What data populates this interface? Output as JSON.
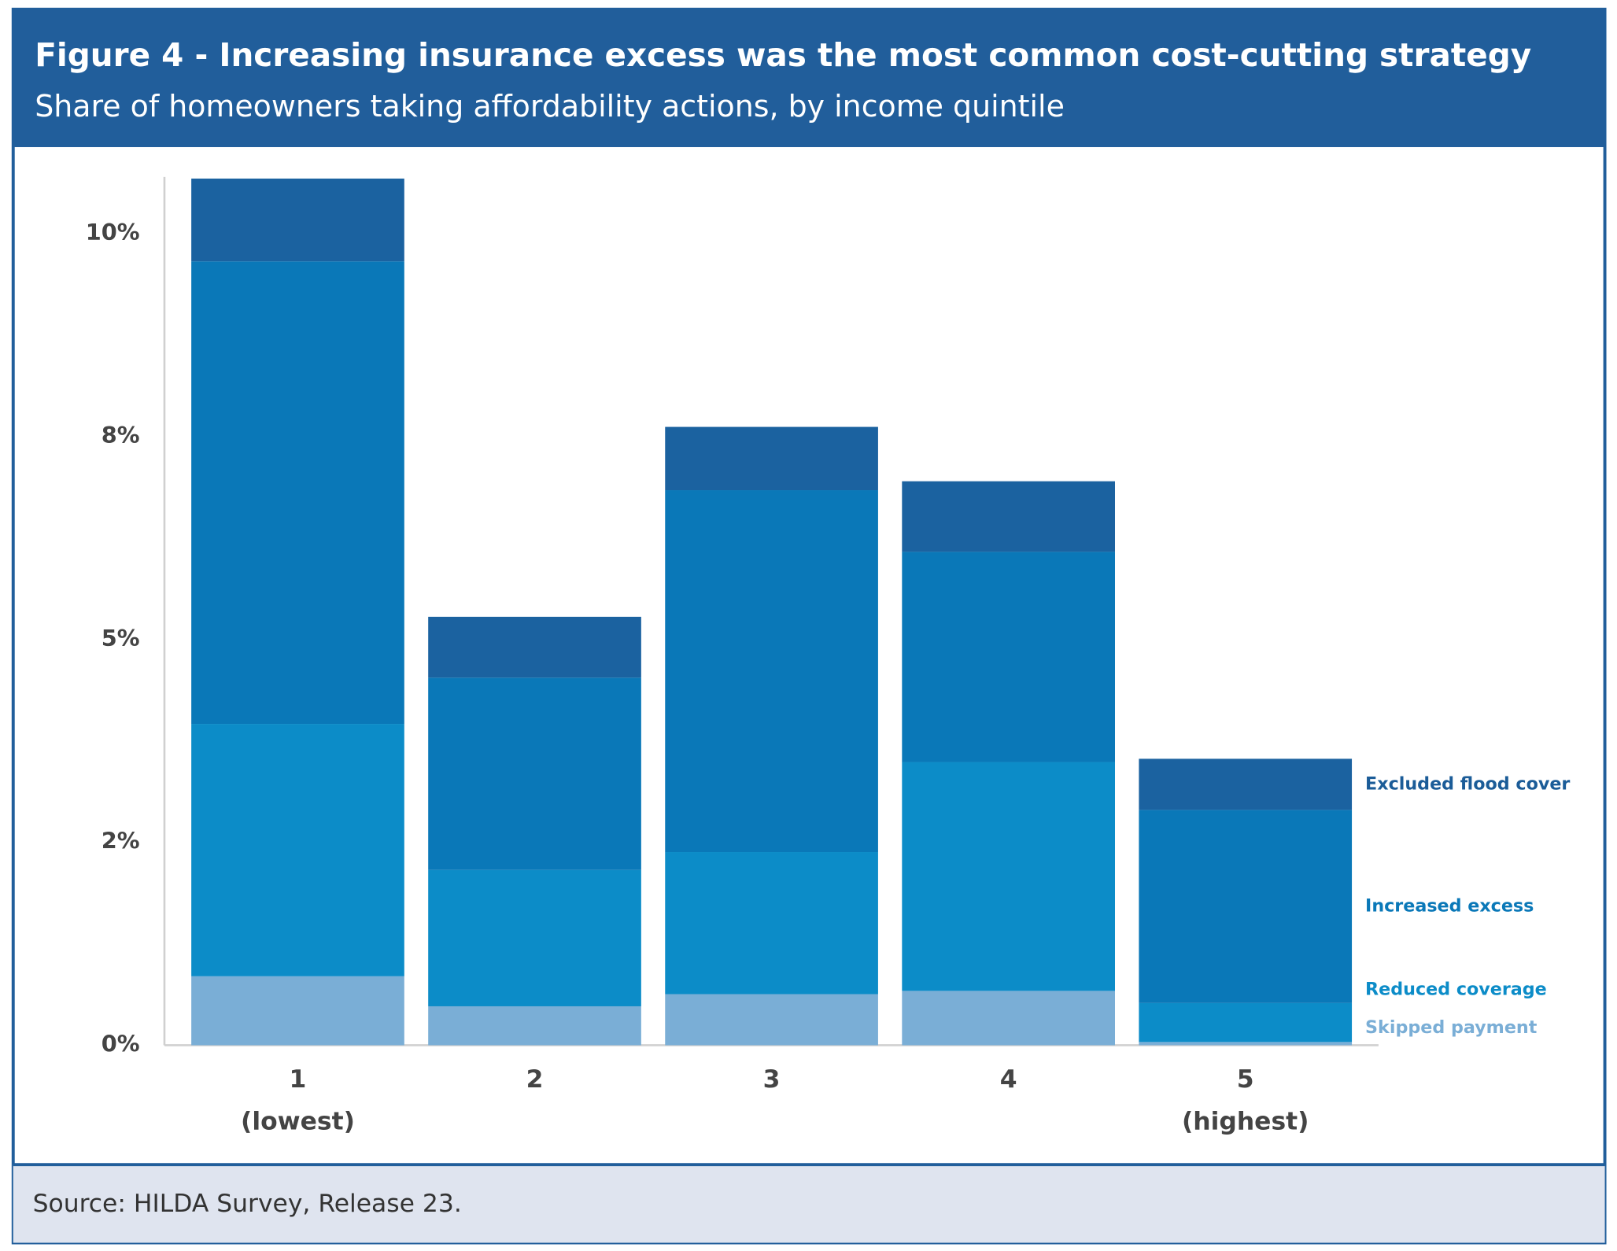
{
  "chart_data": {
    "type": "stacked-bar",
    "title": "Figure 4 - Increasing insurance excess was the most common cost-cutting strategy",
    "subtitle": "Share of homeowners taking affordability actions, by income quintile",
    "source": "Source: HILDA Survey, Release 23.",
    "categories": [
      "1",
      "2",
      "3",
      "4",
      "5"
    ],
    "category_notes": [
      "(lowest)",
      null,
      null,
      null,
      "(highest)"
    ],
    "series": [
      {
        "name": "Skipped payment",
        "color": "#7aaed6",
        "label_color": "#7aaed6",
        "values": [
          0.85,
          0.48,
          0.63,
          0.67,
          0.04
        ]
      },
      {
        "name": "Reduced coverage",
        "color": "#0c8cc8",
        "label_color": "#0c8cc8",
        "values": [
          3.11,
          1.68,
          1.75,
          2.82,
          0.48
        ]
      },
      {
        "name": "Increased excess",
        "color": "#0a78b8",
        "label_color": "#0a78b8",
        "values": [
          5.7,
          2.37,
          4.46,
          2.59,
          2.38
        ]
      },
      {
        "name": "Excluded flood cover",
        "color": "#1b62a0",
        "label_color": "#1b5c98",
        "values": [
          1.02,
          0.75,
          0.78,
          0.87,
          0.63
        ]
      }
    ],
    "ylim": [
      0,
      10.7
    ],
    "yticks": [
      {
        "value": 0,
        "label": "0%"
      },
      {
        "value": 2.5,
        "label": "2%"
      },
      {
        "value": 5,
        "label": "5%"
      },
      {
        "value": 7.5,
        "label": "8%"
      },
      {
        "value": 10,
        "label": "10%"
      }
    ],
    "grid": false
  }
}
